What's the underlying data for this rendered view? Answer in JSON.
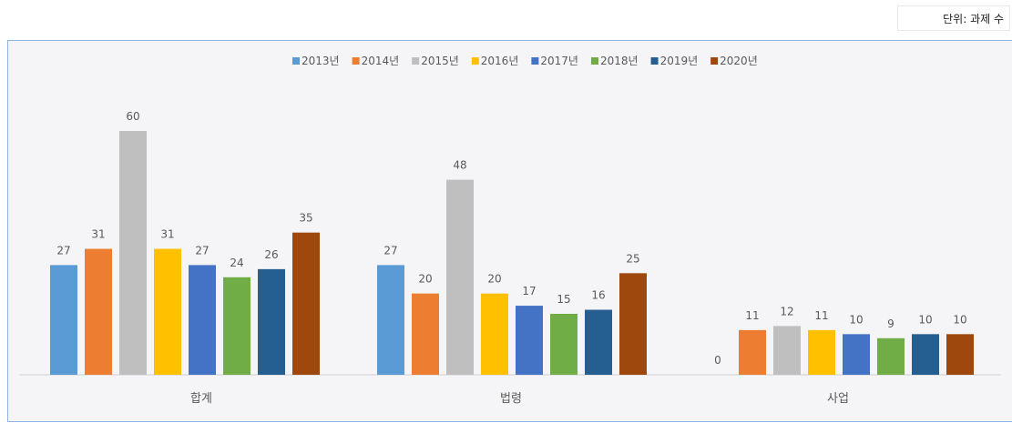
{
  "unit_label": "단위: 과제 수",
  "colors": [
    "#5b9bd5",
    "#ed7d31",
    "#bfbfbf",
    "#ffc000",
    "#4472c4",
    "#70ad47",
    "#255e91",
    "#9e480e"
  ],
  "chart_data": {
    "type": "bar",
    "categories": [
      "합계",
      "법령",
      "사업"
    ],
    "series": [
      {
        "name": "2013년",
        "values": [
          27,
          27,
          0
        ]
      },
      {
        "name": "2014년",
        "values": [
          31,
          20,
          11
        ]
      },
      {
        "name": "2015년",
        "values": [
          60,
          48,
          12
        ]
      },
      {
        "name": "2016년",
        "values": [
          31,
          20,
          11
        ]
      },
      {
        "name": "2017년",
        "values": [
          27,
          17,
          10
        ]
      },
      {
        "name": "2018년",
        "values": [
          24,
          15,
          9
        ]
      },
      {
        "name": "2019년",
        "values": [
          26,
          16,
          10
        ]
      },
      {
        "name": "2020년",
        "values": [
          35,
          25,
          10
        ]
      }
    ],
    "ylim": [
      0,
      60
    ],
    "grid": false,
    "legend": "top-center",
    "data_labels": true
  }
}
